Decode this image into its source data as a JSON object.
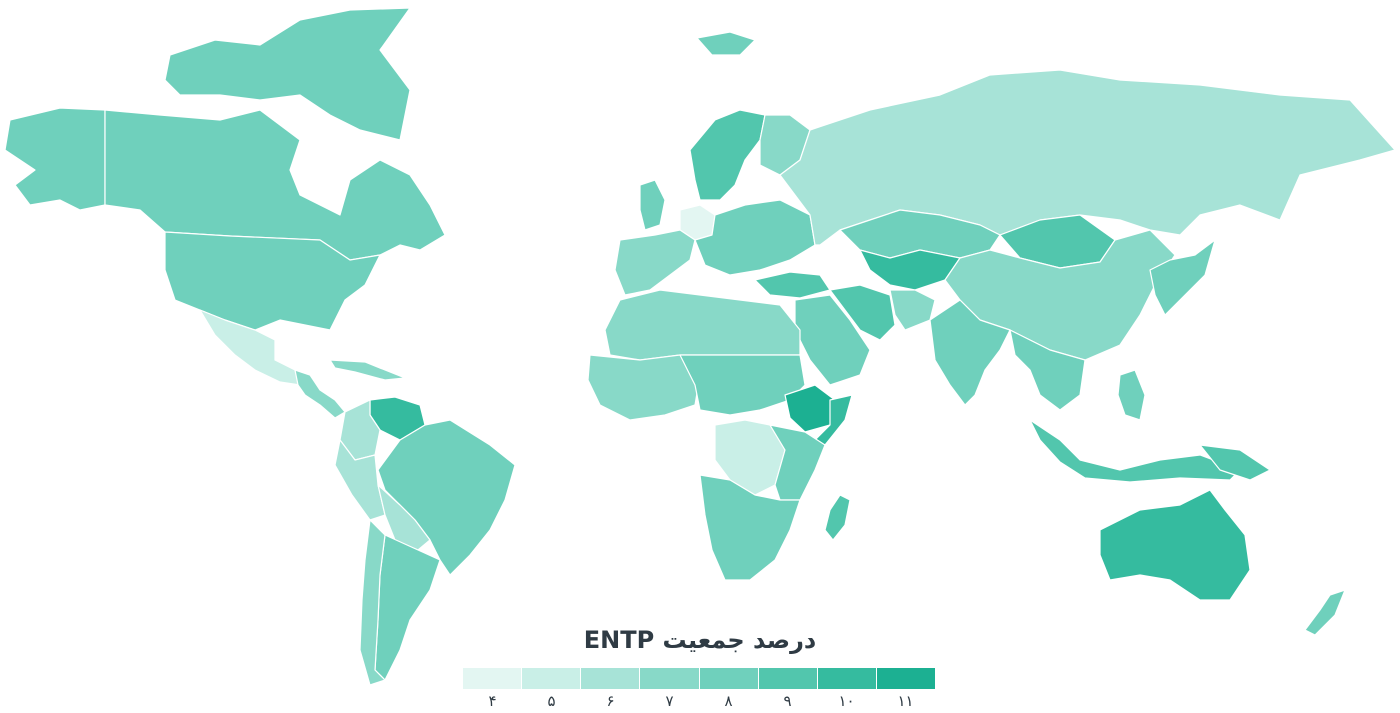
{
  "map": {
    "title": "درصد جمعیت ENTP",
    "scale_colors": [
      "#e3f6f2",
      "#c9efe7",
      "#a7e3d7",
      "#88d9c8",
      "#6fd0bc",
      "#52c6ad",
      "#35bb9f",
      "#1cb092"
    ],
    "legend": [
      {
        "label": "۴",
        "color": "#e3f6f2"
      },
      {
        "label": "۵",
        "color": "#c9efe7"
      },
      {
        "label": "۶",
        "color": "#a7e3d7"
      },
      {
        "label": "۷",
        "color": "#88d9c8"
      },
      {
        "label": "۸",
        "color": "#6fd0bc"
      },
      {
        "label": "۹",
        "color": "#52c6ad"
      },
      {
        "label": "۱۰",
        "color": "#35bb9f"
      },
      {
        "label": "۱۱",
        "color": "#1cb092"
      }
    ],
    "regions": [
      {
        "id": "alaska",
        "level": 8
      },
      {
        "id": "canada",
        "level": 8
      },
      {
        "id": "canada-arctic",
        "level": 8
      },
      {
        "id": "greenland",
        "level": null
      },
      {
        "id": "usa",
        "level": 8
      },
      {
        "id": "mexico",
        "level": 5
      },
      {
        "id": "central-america",
        "level": 7
      },
      {
        "id": "caribbean",
        "level": 7
      },
      {
        "id": "venezuela",
        "level": 10
      },
      {
        "id": "colombia",
        "level": 6
      },
      {
        "id": "peru",
        "level": 6
      },
      {
        "id": "brazil",
        "level": 8
      },
      {
        "id": "bolivia",
        "level": 6
      },
      {
        "id": "argentina",
        "level": 8
      },
      {
        "id": "chile",
        "level": 7
      },
      {
        "id": "iceland",
        "level": 8
      },
      {
        "id": "uk",
        "level": 8
      },
      {
        "id": "scandinavia",
        "level": 9
      },
      {
        "id": "finland",
        "level": 7
      },
      {
        "id": "germany",
        "level": 4
      },
      {
        "id": "western-europe",
        "level": 7
      },
      {
        "id": "eastern-europe",
        "level": 8
      },
      {
        "id": "russia",
        "level": 6
      },
      {
        "id": "turkey",
        "level": 9
      },
      {
        "id": "kazakhstan",
        "level": 8
      },
      {
        "id": "central-asia",
        "level": 10
      },
      {
        "id": "mongolia",
        "level": 9
      },
      {
        "id": "china",
        "level": 7
      },
      {
        "id": "korea-japan",
        "level": 8
      },
      {
        "id": "middle-east",
        "level": 8
      },
      {
        "id": "iran",
        "level": 9
      },
      {
        "id": "afghanistan",
        "level": 7
      },
      {
        "id": "india",
        "level": 8
      },
      {
        "id": "southeast-asia",
        "level": 8
      },
      {
        "id": "indonesia",
        "level": 9
      },
      {
        "id": "philippines",
        "level": 8
      },
      {
        "id": "north-africa",
        "level": 7
      },
      {
        "id": "west-africa",
        "level": 7
      },
      {
        "id": "sahel",
        "level": 8
      },
      {
        "id": "ethiopia",
        "level": 11
      },
      {
        "id": "somalia",
        "level": 10
      },
      {
        "id": "drc",
        "level": 5
      },
      {
        "id": "east-africa",
        "level": 8
      },
      {
        "id": "southern-africa",
        "level": 8
      },
      {
        "id": "madagascar",
        "level": 9
      },
      {
        "id": "australia",
        "level": 10
      },
      {
        "id": "new-zealand",
        "level": 8
      },
      {
        "id": "papua",
        "level": 9
      }
    ]
  }
}
